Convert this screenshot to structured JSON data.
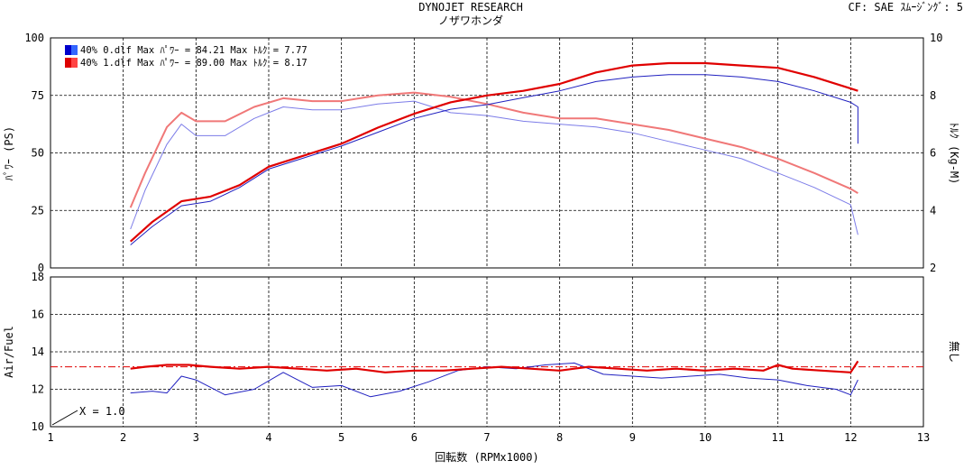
{
  "header": {
    "title": "DYNOJET  RESEARCH",
    "subtitle": "ノザワホンダ",
    "settings": "CF: SAE   ｽﾑｰｼﾞﾝｸﾞ: 5"
  },
  "legend": [
    {
      "label": "40% 0.dlf Max ﾊﾟﾜｰ = 84.21   Max ﾄﾙｸ = 7.77",
      "color": "#0000cc"
    },
    {
      "label": "40% 1.dlf Max ﾊﾟﾜｰ = 89.00   Max ﾄﾙｸ = 8.17",
      "color": "#dd0000"
    }
  ],
  "colors": {
    "run0": "#2020c0",
    "run0_torque": "#7c7ce8",
    "run1": "#e00000",
    "run1_torque": "#f07878",
    "reference": "#e00000"
  },
  "chart_data": [
    {
      "type": "line",
      "xlabel": "回転数 (RPMx1000)",
      "ylabel": "ﾊﾟﾜｰ (PS)",
      "y2label": "ﾄﾙｸ (Kg-M)",
      "xlim": [
        1,
        13
      ],
      "ylim": [
        0,
        100
      ],
      "y2lim": [
        2,
        10
      ],
      "xticks": [
        1,
        2,
        3,
        4,
        5,
        6,
        7,
        8,
        9,
        10,
        11,
        12,
        13
      ],
      "yticks": [
        0,
        25,
        50,
        75,
        100
      ],
      "y2ticks": [
        2,
        4,
        6,
        8,
        10
      ],
      "grid": true,
      "legend_position": "top-left",
      "series": [
        {
          "name": "40% 0.dlf",
          "quantity": "power",
          "axis": "left",
          "x": [
            2.1,
            2.4,
            2.8,
            3.2,
            3.6,
            4.0,
            4.5,
            5.0,
            5.5,
            6.0,
            6.5,
            7.0,
            7.5,
            8.0,
            8.5,
            9.0,
            9.5,
            10.0,
            10.5,
            11.0,
            11.5,
            12.0,
            12.1,
            12.1
          ],
          "y": [
            10,
            18,
            27,
            29,
            35,
            43,
            48,
            53,
            59,
            65,
            69,
            71,
            74,
            77,
            81,
            83,
            84,
            84,
            83,
            81,
            77,
            72,
            70,
            54
          ]
        },
        {
          "name": "40% 1.dlf",
          "quantity": "power",
          "axis": "left",
          "x": [
            2.1,
            2.4,
            2.8,
            3.2,
            3.6,
            4.0,
            4.5,
            5.0,
            5.5,
            6.0,
            6.5,
            7.0,
            7.5,
            8.0,
            8.5,
            9.0,
            9.5,
            10.0,
            10.5,
            11.0,
            11.5,
            12.0,
            12.1
          ],
          "y": [
            11.5,
            20,
            29,
            31,
            36,
            44,
            49,
            54,
            61,
            67,
            72,
            75,
            77,
            80,
            85,
            88,
            89,
            89,
            88,
            87,
            83,
            78,
            77
          ]
        },
        {
          "name": "40% 0.dlf",
          "quantity": "torque",
          "axis": "right",
          "x": [
            2.1,
            2.3,
            2.6,
            2.8,
            3.0,
            3.4,
            3.8,
            4.2,
            4.6,
            5.0,
            5.5,
            6.0,
            6.5,
            7.0,
            7.5,
            8.0,
            8.5,
            9.0,
            9.5,
            10.0,
            10.5,
            11.0,
            11.5,
            12.0,
            12.1
          ],
          "y": [
            3.35,
            4.7,
            6.3,
            7.0,
            6.6,
            6.6,
            7.2,
            7.6,
            7.5,
            7.5,
            7.7,
            7.8,
            7.4,
            7.3,
            7.1,
            7.0,
            6.9,
            6.7,
            6.4,
            6.1,
            5.8,
            5.3,
            4.8,
            4.2,
            3.15
          ]
        },
        {
          "name": "40% 1.dlf",
          "quantity": "torque",
          "axis": "right",
          "x": [
            2.1,
            2.3,
            2.6,
            2.8,
            3.0,
            3.4,
            3.8,
            4.2,
            4.6,
            5.0,
            5.5,
            6.0,
            6.5,
            7.0,
            7.5,
            8.0,
            8.5,
            9.0,
            9.5,
            10.0,
            10.5,
            11.0,
            11.5,
            12.0,
            12.1
          ],
          "y": [
            4.1,
            5.3,
            6.9,
            7.4,
            7.1,
            7.1,
            7.6,
            7.9,
            7.8,
            7.8,
            8.0,
            8.1,
            7.95,
            7.7,
            7.4,
            7.2,
            7.2,
            7.0,
            6.8,
            6.5,
            6.2,
            5.8,
            5.3,
            4.75,
            4.6
          ]
        }
      ]
    },
    {
      "type": "line",
      "xlabel": "回転数 (RPMx1000)",
      "ylabel": "Air/Fuel",
      "y2label": "無し",
      "xlim": [
        1,
        13
      ],
      "ylim": [
        10,
        18
      ],
      "xticks": [
        1,
        2,
        3,
        4,
        5,
        6,
        7,
        8,
        9,
        10,
        11,
        12,
        13
      ],
      "yticks": [
        10,
        12,
        14,
        16,
        18
      ],
      "grid": true,
      "annotation": "X = 1.0",
      "reference_line": {
        "y": 13.2,
        "style": "dash-dot"
      },
      "series": [
        {
          "name": "40% 0.dlf",
          "x": [
            2.1,
            2.4,
            2.6,
            2.8,
            3.0,
            3.4,
            3.8,
            4.2,
            4.6,
            5.0,
            5.4,
            5.8,
            6.2,
            6.6,
            7.0,
            7.4,
            7.8,
            8.2,
            8.6,
            9.0,
            9.4,
            9.8,
            10.2,
            10.6,
            11.0,
            11.4,
            11.8,
            12.0,
            12.1
          ],
          "y": [
            11.8,
            11.9,
            11.8,
            12.7,
            12.5,
            11.7,
            12.0,
            12.9,
            12.1,
            12.2,
            11.6,
            11.9,
            12.4,
            13.0,
            13.2,
            13.1,
            13.3,
            13.4,
            12.8,
            12.7,
            12.6,
            12.7,
            12.8,
            12.6,
            12.5,
            12.2,
            12.0,
            11.7,
            12.5
          ]
        },
        {
          "name": "40% 1.dlf",
          "x": [
            2.1,
            2.3,
            2.6,
            2.9,
            3.2,
            3.6,
            4.0,
            4.4,
            4.8,
            5.2,
            5.6,
            6.0,
            6.4,
            6.8,
            7.2,
            7.6,
            8.0,
            8.4,
            8.8,
            9.2,
            9.6,
            10.0,
            10.4,
            10.8,
            11.0,
            11.2,
            11.6,
            12.0,
            12.1
          ],
          "y": [
            13.1,
            13.2,
            13.3,
            13.3,
            13.2,
            13.1,
            13.2,
            13.1,
            13.0,
            13.1,
            12.9,
            13.0,
            13.0,
            13.1,
            13.2,
            13.1,
            13.0,
            13.2,
            13.1,
            13.0,
            13.1,
            13.0,
            13.1,
            13.0,
            13.3,
            13.1,
            13.0,
            12.9,
            13.5
          ]
        }
      ]
    }
  ]
}
